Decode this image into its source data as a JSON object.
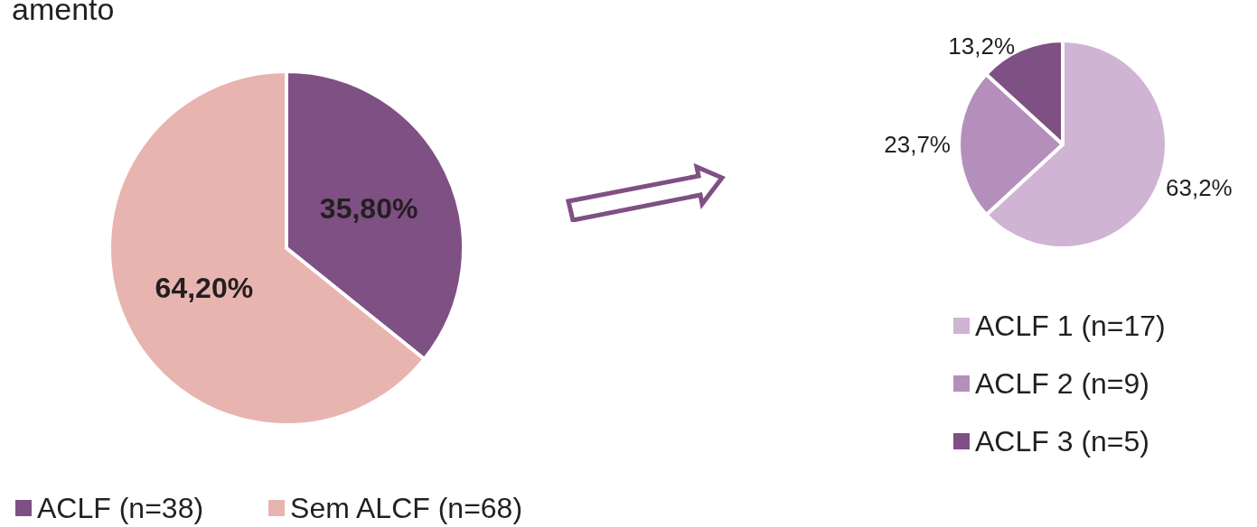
{
  "chart_data": [
    {
      "type": "pie",
      "title": "amento",
      "categories": [
        "ACLF (n=38)",
        "Sem ALCF (n=68)"
      ],
      "values": [
        35.8,
        64.2
      ],
      "colors": [
        "#7f5084",
        "#e8b4b0"
      ],
      "value_labels": [
        "35,80%",
        "64,20%"
      ],
      "legend": "bottom"
    },
    {
      "type": "pie",
      "categories": [
        "ACLF 1 (n=17)",
        "ACLF 2 (n=9)",
        "ACLF 3 (n=5)"
      ],
      "values": [
        63.2,
        23.7,
        13.2
      ],
      "colors": [
        "#d0b4d4",
        "#b48fbc",
        "#7f5084"
      ],
      "value_labels": [
        "63,2%",
        "23,7%",
        "13,2%"
      ],
      "legend": "bottom"
    }
  ]
}
